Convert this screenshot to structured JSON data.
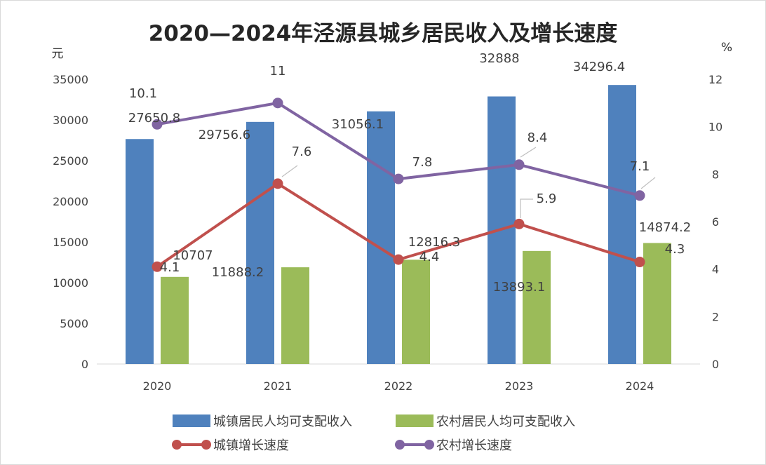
{
  "chart_data": {
    "type": "bar",
    "title": "2020—2024年泾源县城乡居民收入及增长速度",
    "categories": [
      "2020",
      "2021",
      "2022",
      "2023",
      "2024"
    ],
    "y_left": {
      "unit": "元",
      "range": [
        0,
        35000
      ],
      "ticks": [
        "0",
        "5000",
        "10000",
        "15000",
        "20000",
        "25000",
        "30000",
        "35000"
      ]
    },
    "y_right": {
      "unit": "%",
      "range": [
        0,
        12
      ],
      "ticks": [
        "0",
        "2",
        "4",
        "6",
        "8",
        "10",
        "12"
      ]
    },
    "series": [
      {
        "name": "城镇居民人均可支配收入",
        "kind": "bar",
        "axis": "left",
        "color": "#4f81bd",
        "values": [
          27650.8,
          29756.6,
          31056.1,
          32888,
          34296.4
        ],
        "labels": [
          "27650.8",
          "29756.6",
          "31056.1",
          "32888",
          "34296.4"
        ]
      },
      {
        "name": "农村居民人均可支配收入",
        "kind": "bar",
        "axis": "left",
        "color": "#9bbb59",
        "values": [
          10707,
          11888.2,
          12816.3,
          13893.1,
          14874.2
        ],
        "labels": [
          "10707",
          "11888.2",
          "12816.3",
          "13893.1",
          "14874.2"
        ]
      },
      {
        "name": "城镇增长速度",
        "kind": "line",
        "axis": "right",
        "color": "#c0504d",
        "values": [
          4.1,
          7.6,
          4.4,
          5.9,
          4.3
        ],
        "labels": [
          "4.1",
          "7.6",
          "4.4",
          "5.9",
          "4.3"
        ]
      },
      {
        "name": "农村增长速度",
        "kind": "line",
        "axis": "right",
        "color": "#8064a2",
        "values": [
          10.1,
          11,
          7.8,
          8.4,
          7.1
        ],
        "labels": [
          "10.1",
          "11",
          "7.8",
          "8.4",
          "7.1"
        ]
      }
    ],
    "grid": false,
    "legend_position": "bottom"
  }
}
